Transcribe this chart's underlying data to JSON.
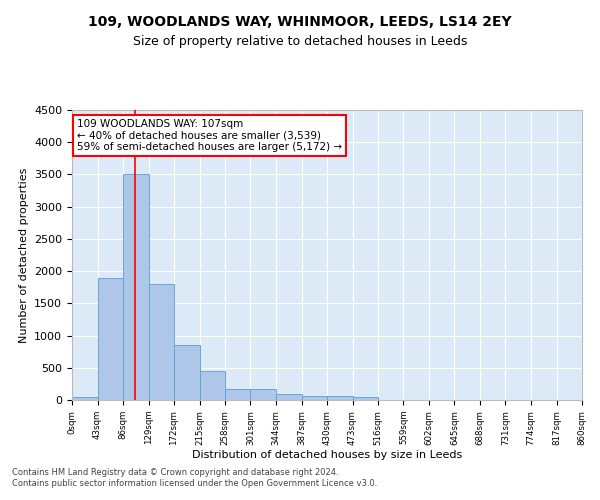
{
  "title1": "109, WOODLANDS WAY, WHINMOOR, LEEDS, LS14 2EY",
  "title2": "Size of property relative to detached houses in Leeds",
  "xlabel": "Distribution of detached houses by size in Leeds",
  "ylabel": "Number of detached properties",
  "bar_color": "#aec6e8",
  "bar_edge_color": "#5a9fd4",
  "background_color": "#dce9f7",
  "grid_color": "white",
  "annotation_line1": "109 WOODLANDS WAY: 107sqm",
  "annotation_line2": "← 40% of detached houses are smaller (3,539)",
  "annotation_line3": "59% of semi-detached houses are larger (5,172) →",
  "annotation_box_color": "white",
  "annotation_box_edge_color": "red",
  "red_line_x": 107,
  "footer": "Contains HM Land Registry data © Crown copyright and database right 2024.\nContains public sector information licensed under the Open Government Licence v3.0.",
  "bin_edges": [
    0,
    43,
    86,
    129,
    172,
    215,
    258,
    301,
    344,
    387,
    430,
    473,
    516,
    559,
    602,
    645,
    688,
    731,
    774,
    817,
    860
  ],
  "bar_heights": [
    50,
    1900,
    3500,
    1800,
    850,
    450,
    175,
    170,
    95,
    65,
    55,
    50,
    0,
    0,
    0,
    0,
    0,
    0,
    0,
    0
  ],
  "ylim": [
    0,
    4500
  ],
  "yticks": [
    0,
    500,
    1000,
    1500,
    2000,
    2500,
    3000,
    3500,
    4000,
    4500
  ]
}
